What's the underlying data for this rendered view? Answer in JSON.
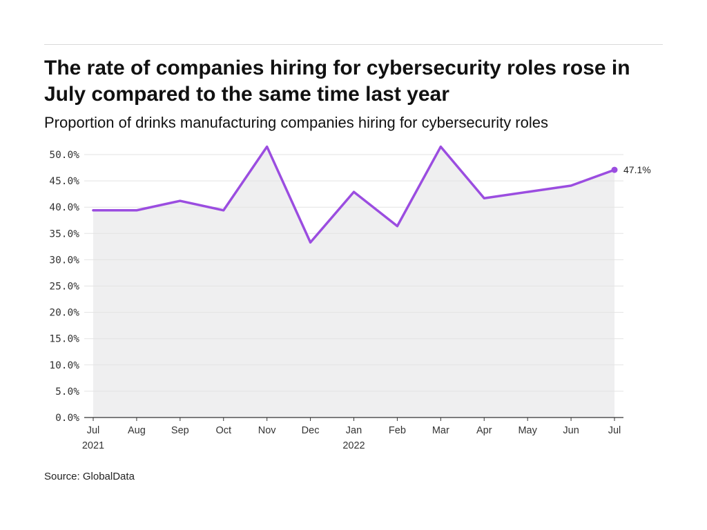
{
  "header": {
    "title": "The rate of companies hiring for cybersecurity roles rose in July compared to the same time last year",
    "subtitle": "Proportion of drinks manufacturing companies hiring for cybersecurity roles"
  },
  "footer": {
    "source": "Source: GlobalData"
  },
  "chart_data": {
    "type": "area",
    "title": "The rate of companies hiring for cybersecurity roles rose in July compared to the same time last year",
    "subtitle": "Proportion of drinks manufacturing companies hiring for cybersecurity roles",
    "xlabel": "",
    "ylabel": "",
    "categories": [
      "Jul",
      "Aug",
      "Sep",
      "Oct",
      "Nov",
      "Dec",
      "Jan",
      "Feb",
      "Mar",
      "Apr",
      "May",
      "Jun",
      "Jul"
    ],
    "year_labels": [
      "2021",
      "",
      "",
      "",
      "",
      "",
      "2022",
      "",
      "",
      "",
      "",
      "",
      ""
    ],
    "values": [
      39.4,
      39.4,
      41.2,
      39.4,
      51.5,
      33.3,
      42.9,
      36.4,
      51.5,
      41.7,
      42.9,
      44.1,
      47.1
    ],
    "y_ticks": [
      "0.0%",
      "5.0%",
      "10.0%",
      "15.0%",
      "20.0%",
      "25.0%",
      "30.0%",
      "35.0%",
      "40.0%",
      "45.0%",
      "50.0%"
    ],
    "ylim": [
      0,
      50
    ],
    "grid": true,
    "end_label": "47.1%",
    "colors": {
      "line": "#9b4de0",
      "fill": "#efeff0",
      "grid": "#e3e3e3",
      "axis": "#333333"
    }
  }
}
